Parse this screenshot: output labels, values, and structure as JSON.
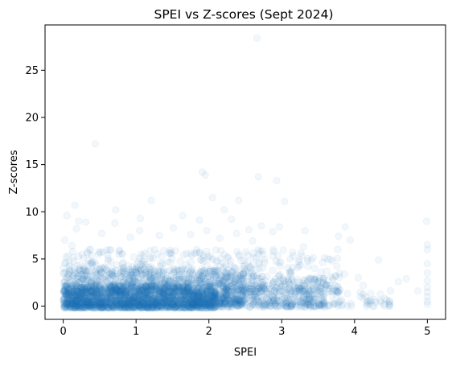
{
  "chart_data": {
    "type": "scatter",
    "title": "SPEI vs Z-scores (Sept 2024)",
    "xlabel": "SPEI",
    "ylabel": "Z-scores",
    "xlim": [
      -0.25,
      5.25
    ],
    "ylim": [
      -1.4,
      29.8
    ],
    "xticks": [
      0,
      1,
      2,
      3,
      4,
      5
    ],
    "yticks": [
      0,
      5,
      10,
      15,
      20,
      25
    ],
    "grid": false,
    "marker_color": "#1f77b4",
    "marker_alpha": 0.06,
    "series": [
      {
        "outliers": [
          {
            "x": 0.44,
            "y": 17.2
          },
          {
            "x": 1.91,
            "y": 14.2
          },
          {
            "x": 1.95,
            "y": 13.9
          },
          {
            "x": 2.68,
            "y": 13.7
          },
          {
            "x": 2.93,
            "y": 13.3
          },
          {
            "x": 2.66,
            "y": 28.4
          },
          {
            "x": 1.21,
            "y": 11.2
          },
          {
            "x": 2.05,
            "y": 11.5
          },
          {
            "x": 2.41,
            "y": 11.2
          },
          {
            "x": 3.04,
            "y": 11.1
          },
          {
            "x": 0.16,
            "y": 10.7
          },
          {
            "x": 0.72,
            "y": 10.2
          },
          {
            "x": 2.21,
            "y": 10.2
          },
          {
            "x": 0.05,
            "y": 9.6
          },
          {
            "x": 1.06,
            "y": 9.3
          },
          {
            "x": 1.64,
            "y": 9.6
          },
          {
            "x": 1.87,
            "y": 9.1
          },
          {
            "x": 2.31,
            "y": 9.2
          },
          {
            "x": 0.21,
            "y": 9.0
          },
          {
            "x": 0.31,
            "y": 8.9
          },
          {
            "x": 0.71,
            "y": 8.8
          },
          {
            "x": 2.72,
            "y": 8.5
          },
          {
            "x": 2.97,
            "y": 8.4
          },
          {
            "x": 2.88,
            "y": 7.9
          },
          {
            "x": 0.18,
            "y": 8.2
          },
          {
            "x": 1.05,
            "y": 8.0
          },
          {
            "x": 1.51,
            "y": 8.3
          },
          {
            "x": 1.97,
            "y": 8.0
          },
          {
            "x": 2.55,
            "y": 8.1
          },
          {
            "x": 3.32,
            "y": 8.0
          },
          {
            "x": 3.87,
            "y": 8.4
          },
          {
            "x": 3.78,
            "y": 7.4
          },
          {
            "x": 3.94,
            "y": 7.0
          },
          {
            "x": 4.99,
            "y": 9.0
          },
          {
            "x": 5.0,
            "y": 6.5
          },
          {
            "x": 5.0,
            "y": 6.0
          },
          {
            "x": 5.0,
            "y": 4.5
          },
          {
            "x": 5.0,
            "y": 3.5
          },
          {
            "x": 5.0,
            "y": 2.7
          },
          {
            "x": 5.0,
            "y": 2.0
          },
          {
            "x": 5.0,
            "y": 1.5
          },
          {
            "x": 5.0,
            "y": 1.0
          },
          {
            "x": 5.0,
            "y": 0.5
          },
          {
            "x": 5.0,
            "y": 0.2
          },
          {
            "x": 4.33,
            "y": 4.9
          },
          {
            "x": 4.71,
            "y": 2.9
          },
          {
            "x": 4.6,
            "y": 2.6
          },
          {
            "x": 4.87,
            "y": 1.6
          },
          {
            "x": 4.48,
            "y": 0.5
          },
          {
            "x": 4.36,
            "y": 0.4
          },
          {
            "x": 4.27,
            "y": 0.7
          },
          {
            "x": 4.05,
            "y": 3.0
          },
          {
            "x": 4.12,
            "y": 2.2
          },
          {
            "x": 3.86,
            "y": 3.4
          },
          {
            "x": 3.63,
            "y": 5.0
          },
          {
            "x": 3.45,
            "y": 4.0
          },
          {
            "x": 3.3,
            "y": 6.3
          },
          {
            "x": 3.15,
            "y": 5.7
          },
          {
            "x": 0.02,
            "y": 7.0
          },
          {
            "x": 0.12,
            "y": 6.4
          },
          {
            "x": 0.53,
            "y": 7.7
          },
          {
            "x": 0.92,
            "y": 7.3
          },
          {
            "x": 1.32,
            "y": 7.5
          },
          {
            "x": 2.15,
            "y": 7.2
          },
          {
            "x": 2.38,
            "y": 7.7
          },
          {
            "x": 2.6,
            "y": 6.9
          },
          {
            "x": 1.75,
            "y": 7.6
          }
        ],
        "clusters": [
          {
            "x_min": 0.0,
            "x_max": 2.1,
            "y_min": -0.2,
            "y_max": 2.2,
            "count": 1800
          },
          {
            "x_min": 0.0,
            "x_max": 2.5,
            "y_min": 0.2,
            "y_max": 4.0,
            "count": 1100
          },
          {
            "x_min": 0.0,
            "x_max": 2.7,
            "y_min": 1.5,
            "y_max": 6.0,
            "count": 500
          },
          {
            "x_min": 2.0,
            "x_max": 3.6,
            "y_min": -0.1,
            "y_max": 3.0,
            "count": 520
          },
          {
            "x_min": 2.5,
            "x_max": 3.8,
            "y_min": 1.5,
            "y_max": 6.0,
            "count": 150
          },
          {
            "x_min": 3.5,
            "x_max": 4.5,
            "y_min": 0.0,
            "y_max": 2.0,
            "count": 60
          }
        ]
      }
    ]
  }
}
